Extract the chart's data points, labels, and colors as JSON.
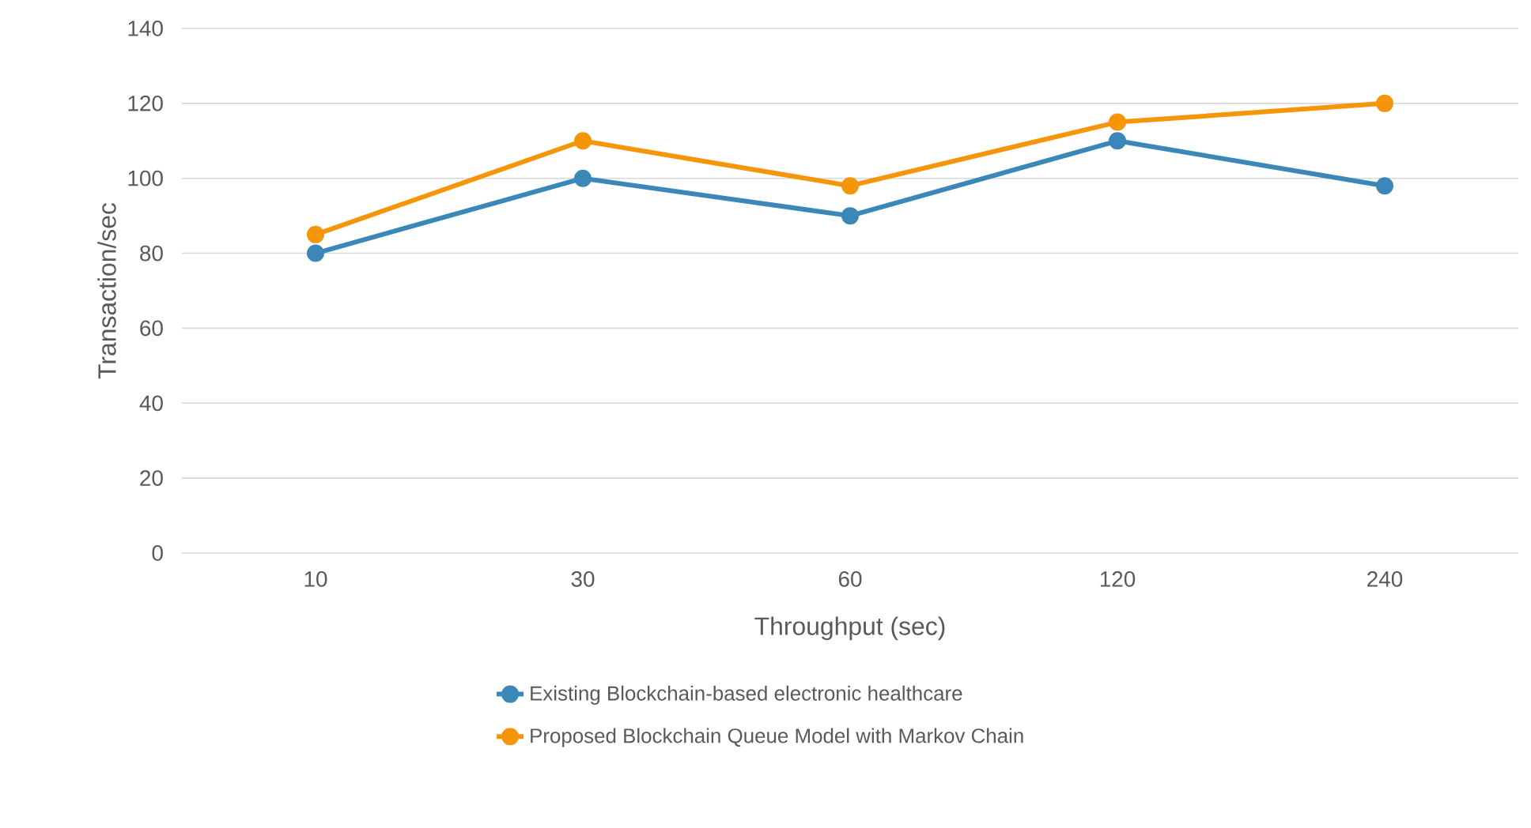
{
  "chart_data": {
    "type": "line",
    "xlabel": "Throughput (sec)",
    "ylabel": "Transaction/sec",
    "categories": [
      "10",
      "30",
      "60",
      "120",
      "240"
    ],
    "series": [
      {
        "name": "Existing Blockchain-based electronic healthcare",
        "color": "#3a87b8",
        "values": [
          80,
          100,
          90,
          110,
          98
        ]
      },
      {
        "name": "Proposed Blockchain Queue Model with Markov Chain",
        "color": "#f5960a",
        "values": [
          85,
          110,
          98,
          115,
          120
        ]
      }
    ],
    "ylim": [
      0,
      140
    ],
    "yticks": [
      0,
      20,
      40,
      60,
      80,
      100,
      120,
      140
    ],
    "grid": "y",
    "legend": "bottom",
    "marker": "circle",
    "line_style": "solid"
  }
}
